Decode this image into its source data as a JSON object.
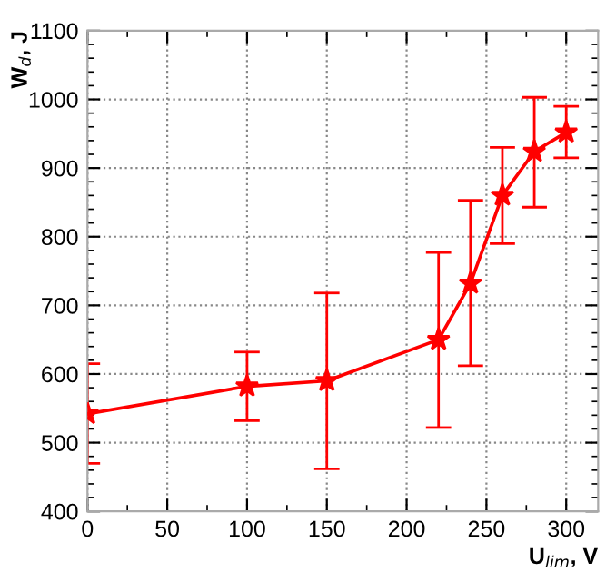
{
  "chart_data": {
    "type": "line",
    "xlabel": "U$_{lim}$, V",
    "ylabel": "W$_{d}$, J",
    "x": [
      0,
      100,
      150,
      220,
      240,
      260,
      280,
      300
    ],
    "series": [
      {
        "color": "#ff0000",
        "values": [
          542,
          582,
          590,
          650,
          732,
          860,
          924,
          952
        ],
        "errors": [
          [
            470,
            615
          ],
          [
            532,
            632
          ],
          [
            462,
            718
          ],
          [
            522,
            777
          ],
          [
            612,
            853
          ],
          [
            790,
            930
          ],
          [
            843,
            1003
          ],
          [
            915,
            990
          ]
        ]
      }
    ],
    "xlim": [
      0,
      320
    ],
    "ylim": [
      400,
      1100
    ],
    "xticks": [
      0,
      50,
      100,
      150,
      200,
      250,
      300
    ],
    "yticks": [
      400,
      500,
      600,
      700,
      800,
      900,
      1000,
      1100
    ],
    "grid": true,
    "marker": "star",
    "line_style": "solid"
  }
}
